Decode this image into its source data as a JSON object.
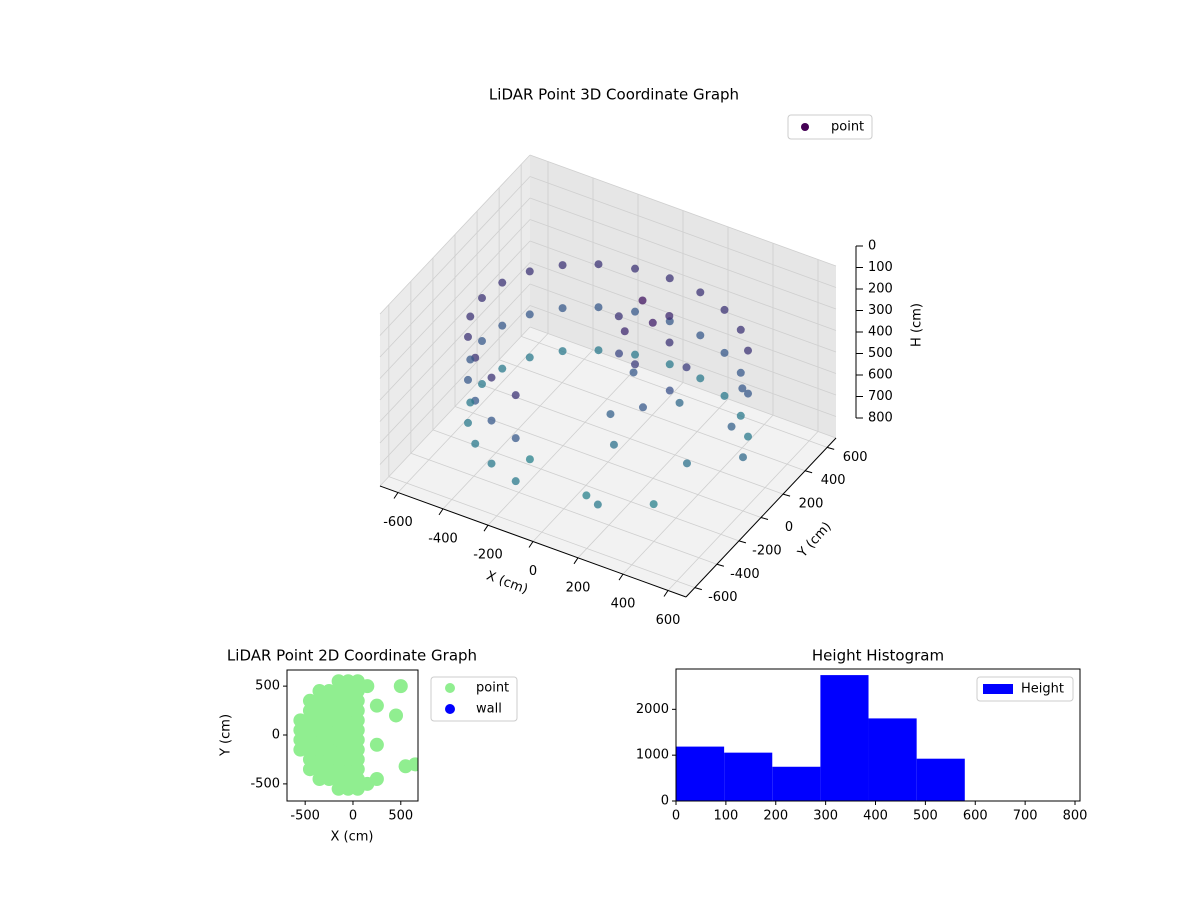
{
  "chart_data": [
    {
      "type": "scatter3d",
      "title": "LiDAR Point 3D Coordinate Graph",
      "x_label": "X (cm)",
      "y_label": "Y (cm)",
      "z_label": "H (cm)",
      "xlim": [
        -680,
        680
      ],
      "ylim": [
        -680,
        680
      ],
      "zlim": [
        800,
        0
      ],
      "xticks": [
        -600,
        -400,
        -200,
        0,
        200,
        400,
        600
      ],
      "yticks": [
        -600,
        -400,
        -200,
        0,
        200,
        400,
        600
      ],
      "zticks": [
        0,
        100,
        200,
        300,
        400,
        500,
        600,
        700,
        800
      ],
      "grid": true,
      "legend": "upper right",
      "series": [
        {
          "name": "point",
          "color": "#440154",
          "colormap": [
            "#440154",
            "#3b528b",
            "#21918c"
          ],
          "x": [
            0,
            -145,
            -280,
            -396,
            -485,
            -541,
            -560,
            -541,
            -485,
            -396,
            -280,
            -145,
            145,
            280,
            396,
            485,
            0,
            -145,
            -280,
            -396,
            -485,
            -541,
            -560,
            -541,
            -485,
            -396,
            -280,
            -145,
            145,
            280,
            396,
            485,
            0,
            -145,
            -280,
            -396,
            -485,
            -541,
            -560,
            -541,
            -485,
            -396,
            -280,
            -145,
            145,
            280,
            396,
            485,
            80,
            150,
            50,
            200,
            120,
            0,
            250,
            180,
            60,
            220,
            100,
            300,
            -50,
            150,
            40,
            450,
            500,
            350,
            200,
            600,
            400,
            100,
            -200
          ],
          "y": [
            560,
            541,
            485,
            396,
            280,
            145,
            0,
            -145,
            -280,
            -396,
            -485,
            -541,
            541,
            485,
            396,
            280,
            560,
            541,
            485,
            396,
            280,
            145,
            0,
            -145,
            -280,
            -396,
            -485,
            -541,
            541,
            485,
            396,
            280,
            560,
            541,
            485,
            396,
            280,
            145,
            0,
            -145,
            -280,
            -396,
            -485,
            -541,
            541,
            485,
            396,
            280,
            150,
            100,
            50,
            150,
            0,
            100,
            50,
            -50,
            -100,
            200,
            -150,
            100,
            200,
            250,
            150,
            300,
            100,
            -300,
            -500,
            0,
            -100,
            -400,
            -300
          ],
          "z": [
            250,
            250,
            250,
            250,
            250,
            250,
            250,
            250,
            250,
            250,
            250,
            250,
            250,
            250,
            250,
            250,
            450,
            450,
            450,
            450,
            450,
            450,
            450,
            450,
            450,
            450,
            450,
            450,
            450,
            450,
            450,
            450,
            650,
            650,
            650,
            650,
            650,
            650,
            650,
            650,
            650,
            650,
            650,
            650,
            650,
            650,
            650,
            650,
            100,
            150,
            200,
            250,
            300,
            350,
            400,
            450,
            500,
            550,
            600,
            300,
            250,
            200,
            450,
            450,
            500,
            700,
            650,
            550,
            600,
            700,
            700
          ]
        }
      ]
    },
    {
      "type": "scatter",
      "title": "LiDAR Point 2D Coordinate Graph",
      "x_label": "X (cm)",
      "y_label": "Y (cm)",
      "xlim": [
        -690,
        680
      ],
      "ylim": [
        -675,
        665
      ],
      "xticks": [
        -500,
        0,
        500
      ],
      "yticks": [
        -500,
        0,
        500
      ],
      "legend": "outside upper right",
      "series": [
        {
          "name": "point",
          "color": "#90ee90",
          "x": [
            -550,
            -550,
            -550,
            -550,
            -450,
            -450,
            -450,
            -450,
            -450,
            -450,
            -450,
            -450,
            -350,
            -350,
            -350,
            -350,
            -350,
            -350,
            -350,
            -350,
            -350,
            -350,
            -250,
            -250,
            -250,
            -250,
            -250,
            -250,
            -250,
            -250,
            -250,
            -250,
            -150,
            -150,
            -150,
            -150,
            -150,
            -150,
            -150,
            -150,
            -150,
            -150,
            -150,
            -150,
            -50,
            -50,
            -50,
            -50,
            -50,
            -50,
            -50,
            -50,
            -50,
            -50,
            -50,
            -50,
            50,
            50,
            50,
            50,
            50,
            50,
            50,
            50,
            50,
            50,
            50,
            50,
            150,
            150,
            250,
            250,
            500,
            450,
            650,
            550,
            250
          ],
          "y": [
            -150,
            -50,
            50,
            150,
            -350,
            -250,
            -150,
            -50,
            50,
            150,
            250,
            350,
            -450,
            -350,
            -250,
            -150,
            -50,
            50,
            150,
            250,
            350,
            450,
            -450,
            -350,
            -250,
            -150,
            -50,
            50,
            150,
            250,
            350,
            450,
            -550,
            -450,
            -350,
            -250,
            -150,
            -50,
            50,
            150,
            250,
            350,
            450,
            550,
            -550,
            -450,
            -350,
            -250,
            -150,
            -50,
            50,
            150,
            250,
            350,
            450,
            550,
            -550,
            -450,
            -350,
            -250,
            -150,
            -50,
            50,
            150,
            250,
            350,
            450,
            550,
            -500,
            500,
            -450,
            300,
            500,
            200,
            -300,
            -320,
            -100
          ]
        },
        {
          "name": "wall",
          "color": "#0000ff",
          "x": [],
          "y": []
        }
      ]
    },
    {
      "type": "histogram",
      "title": "Height Histogram",
      "xlim": [
        0,
        810
      ],
      "ylim": [
        0,
        2880
      ],
      "xticks": [
        0,
        100,
        200,
        300,
        400,
        500,
        600,
        700,
        800
      ],
      "yticks": [
        0,
        1000,
        2000
      ],
      "legend": "upper right",
      "bins": [
        0,
        96.5,
        193,
        289.5,
        386,
        482.5,
        579,
        675.5,
        772
      ],
      "series": [
        {
          "name": "Height",
          "color": "#0000ff",
          "values": [
            1187,
            1055,
            747,
            2747,
            1802,
            923,
            0,
            0
          ]
        }
      ]
    }
  ]
}
